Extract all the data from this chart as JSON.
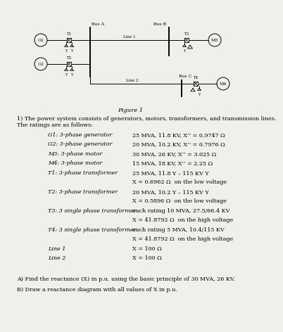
{
  "bg_color": "#f0efeb",
  "fig_title": "Figure 1",
  "intro_text_1": "1) The power system consists of generators, motors, transformers, and transmission lines.",
  "intro_text_2": "The ratings are as follows:",
  "table_rows": [
    [
      "G1: 3-phase generator",
      "25 MVA, 11.8 KV, X’’ = 0.9747 Ω"
    ],
    [
      "G2: 3-phase generator",
      "20 MVA, 10.2 KV, X’’ = 0.7976 Ω"
    ],
    [
      "M3: 3-phase motor",
      "30 MVA, 26 KV, X’’ = 3.025 Ω"
    ],
    [
      "M4: 3-phase motor",
      "15 MVA, 18 KV, X’’ = 2.25 Ω"
    ],
    [
      "T1: 3-phase transformer",
      "25 MVA, 11.8 Y – 115 KV Y"
    ],
    [
      "",
      "X = 0.6962 Ω  on the low voltage"
    ],
    [
      "T2: 3-phase transformer",
      "20 MVA, 10.2 Y – 115 KV Y"
    ],
    [
      "",
      "X = 0.5896 Ω  on the low voltage"
    ],
    [
      "T3: 3 single phase transformer",
      "each rating 10 MVA, 27.5/66.4 KV"
    ],
    [
      "",
      "X = 41.8792 Ω  on the high voltage"
    ],
    [
      "T4: 3 single phase transformer",
      "each rating 5 MVA, 10.4/115 KV"
    ],
    [
      "",
      "X = 41.8792 Ω  on the high voltage"
    ],
    [
      "Line 1",
      "X = 100 Ω"
    ],
    [
      "Line 2",
      "X = 100 Ω"
    ]
  ],
  "question_a": "A) Find the reactance (X) in p.u. using the basic principle of 30 MVA, 26 KV.",
  "question_b": "B) Draw a reactance diagram with all values of X in p.u."
}
